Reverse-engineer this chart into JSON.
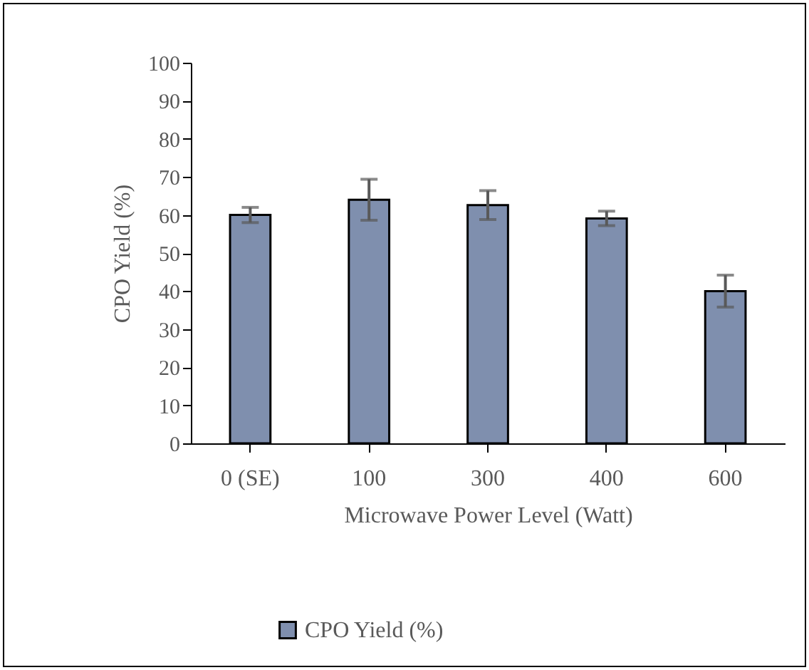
{
  "chart_data": {
    "type": "bar",
    "xlabel": "Microwave Power Level (Watt)",
    "ylabel": "CPO Yield (%)",
    "categories": [
      "0 (SE)",
      "100",
      "300",
      "400",
      "600"
    ],
    "series": [
      {
        "name": "CPO Yield (%)",
        "color": "#7f8fae",
        "values": [
          60,
          64,
          62.6,
          59.1,
          40
        ],
        "errors": [
          2,
          5.4,
          3.8,
          1.9,
          4.2
        ]
      }
    ],
    "ylim": [
      0,
      100
    ],
    "yticks": [
      0,
      10,
      20,
      30,
      40,
      50,
      60,
      70,
      80,
      90,
      100
    ],
    "grid": false,
    "legend": "bottom"
  }
}
